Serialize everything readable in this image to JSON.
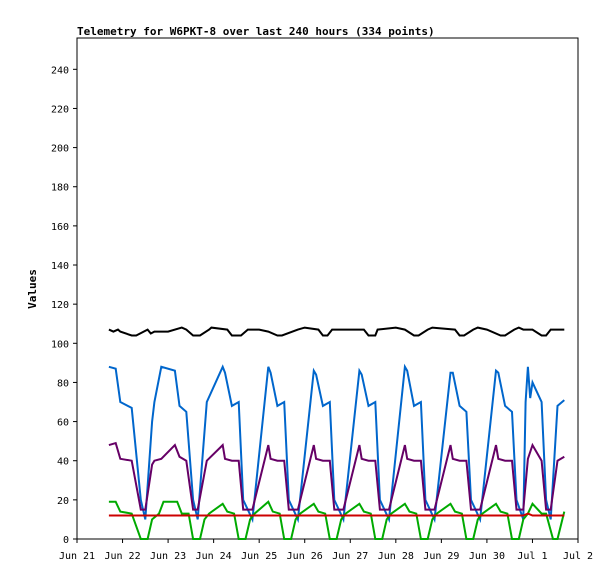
{
  "chart_data": {
    "type": "line",
    "title": "Telemetry for W6PKT-8 over last 240 hours (334 points)",
    "xlabel": "",
    "ylabel": "Values",
    "ylim": [
      0,
      256
    ],
    "xlim": [
      0,
      11
    ],
    "y_ticks": [
      0,
      20,
      40,
      60,
      80,
      100,
      120,
      140,
      160,
      180,
      200,
      220,
      240
    ],
    "x_ticks": [
      "Jun 21",
      "Jun 22",
      "Jun 23",
      "Jun 24",
      "Jun 25",
      "Jun 26",
      "Jun 27",
      "Jun 28",
      "Jun 29",
      "Jun 30",
      "Jul 1",
      "Jul 2"
    ],
    "grid": false,
    "legend": "none",
    "series": [
      {
        "color": "#000000",
        "x": [
          0.7,
          0.8,
          0.9,
          0.95,
          1.2,
          1.3,
          1.55,
          1.62,
          1.7,
          2.0,
          2.3,
          2.4,
          2.55,
          2.7,
          2.9,
          2.95,
          3.3,
          3.4,
          3.6,
          3.75,
          4.0,
          4.2,
          4.4,
          4.5,
          4.85,
          5.0,
          5.3,
          5.4,
          5.5,
          5.6,
          6.0,
          6.3,
          6.4,
          6.55,
          6.6,
          7.0,
          7.2,
          7.4,
          7.5,
          7.7,
          7.8,
          8.3,
          8.4,
          8.5,
          8.7,
          8.8,
          9.0,
          9.3,
          9.4,
          9.6,
          9.7,
          9.8,
          10.0,
          10.2,
          10.3,
          10.4,
          10.6,
          10.7
        ],
        "y": [
          107,
          106,
          107,
          106,
          104,
          104,
          107,
          105,
          106,
          106,
          108,
          107,
          104,
          104,
          107,
          108,
          107,
          104,
          104,
          107,
          107,
          106,
          104,
          104,
          107,
          108,
          107,
          104,
          104,
          107,
          107,
          107,
          104,
          104,
          107,
          108,
          107,
          104,
          104,
          107,
          108,
          107,
          104,
          104,
          107,
          108,
          107,
          104,
          104,
          107,
          108,
          107,
          107,
          104,
          104,
          107,
          107,
          107
        ]
      },
      {
        "color": "#0066cc",
        "x": [
          0.7,
          0.85,
          0.95,
          1.2,
          1.4,
          1.5,
          1.65,
          1.7,
          1.85,
          2.15,
          2.25,
          2.4,
          2.55,
          2.65,
          2.85,
          3.2,
          3.25,
          3.4,
          3.55,
          3.65,
          3.85,
          4.2,
          4.25,
          4.4,
          4.55,
          4.65,
          4.85,
          5.2,
          5.25,
          5.4,
          5.55,
          5.65,
          5.85,
          6.2,
          6.25,
          6.4,
          6.55,
          6.65,
          6.85,
          7.2,
          7.25,
          7.4,
          7.55,
          7.65,
          7.85,
          8.2,
          8.25,
          8.4,
          8.55,
          8.65,
          8.85,
          9.2,
          9.25,
          9.4,
          9.55,
          9.65,
          9.8,
          9.85,
          9.9,
          9.95,
          10.0,
          10.2,
          10.3,
          10.4,
          10.55,
          10.7
        ],
        "y": [
          88,
          87,
          70,
          67,
          20,
          10,
          60,
          70,
          88,
          86,
          68,
          65,
          20,
          10,
          70,
          88,
          85,
          68,
          70,
          20,
          10,
          88,
          85,
          68,
          70,
          20,
          10,
          86,
          84,
          68,
          70,
          20,
          10,
          86,
          84,
          68,
          70,
          20,
          10,
          88,
          86,
          68,
          70,
          20,
          10,
          85,
          85,
          68,
          65,
          20,
          10,
          86,
          85,
          68,
          65,
          20,
          10,
          70,
          88,
          72,
          80,
          70,
          20,
          10,
          68,
          71
        ]
      },
      {
        "color": "#660066",
        "x": [
          0.7,
          0.85,
          0.95,
          1.2,
          1.4,
          1.5,
          1.65,
          1.7,
          1.85,
          2.15,
          2.25,
          2.4,
          2.55,
          2.65,
          2.85,
          3.2,
          3.25,
          3.4,
          3.55,
          3.65,
          3.85,
          4.2,
          4.25,
          4.4,
          4.55,
          4.65,
          4.85,
          5.2,
          5.25,
          5.4,
          5.55,
          5.65,
          5.85,
          6.2,
          6.25,
          6.4,
          6.55,
          6.65,
          6.85,
          7.2,
          7.25,
          7.4,
          7.55,
          7.65,
          7.85,
          8.2,
          8.25,
          8.4,
          8.55,
          8.65,
          8.85,
          9.2,
          9.25,
          9.4,
          9.55,
          9.65,
          9.8,
          9.9,
          10.0,
          10.2,
          10.3,
          10.4,
          10.55,
          10.7
        ],
        "y": [
          48,
          49,
          41,
          40,
          15,
          15,
          38,
          40,
          41,
          48,
          42,
          40,
          15,
          15,
          40,
          48,
          41,
          40,
          40,
          15,
          15,
          48,
          41,
          40,
          40,
          15,
          15,
          48,
          41,
          40,
          40,
          15,
          15,
          48,
          41,
          40,
          40,
          15,
          15,
          48,
          41,
          40,
          40,
          15,
          15,
          48,
          41,
          40,
          40,
          15,
          15,
          48,
          41,
          40,
          40,
          15,
          15,
          41,
          48,
          40,
          15,
          15,
          40,
          42
        ]
      },
      {
        "color": "#00aa00",
        "x": [
          0.7,
          0.85,
          0.95,
          1.2,
          1.4,
          1.55,
          1.65,
          1.8,
          1.9,
          2.2,
          2.3,
          2.45,
          2.55,
          2.7,
          2.8,
          2.9,
          3.2,
          3.3,
          3.45,
          3.55,
          3.7,
          3.8,
          3.9,
          4.2,
          4.3,
          4.45,
          4.55,
          4.7,
          4.8,
          4.9,
          5.2,
          5.3,
          5.45,
          5.55,
          5.7,
          5.8,
          5.9,
          6.2,
          6.3,
          6.45,
          6.55,
          6.7,
          6.8,
          6.9,
          7.2,
          7.3,
          7.45,
          7.55,
          7.7,
          7.8,
          7.9,
          8.2,
          8.3,
          8.45,
          8.55,
          8.7,
          8.8,
          8.9,
          9.2,
          9.3,
          9.45,
          9.55,
          9.7,
          9.8,
          9.9,
          10.0,
          10.2,
          10.3,
          10.45,
          10.55,
          10.7
        ],
        "y": [
          19,
          19,
          14,
          13,
          0,
          0,
          10,
          13,
          19,
          19,
          13,
          13,
          0,
          0,
          10,
          13,
          18,
          14,
          13,
          0,
          0,
          10,
          13,
          19,
          14,
          13,
          0,
          0,
          10,
          13,
          18,
          14,
          13,
          0,
          0,
          10,
          13,
          18,
          14,
          13,
          0,
          0,
          10,
          13,
          18,
          14,
          13,
          0,
          0,
          10,
          13,
          18,
          14,
          13,
          0,
          0,
          10,
          13,
          18,
          14,
          13,
          0,
          0,
          10,
          13,
          18,
          13,
          13,
          0,
          0,
          14
        ]
      },
      {
        "color": "#cc0000",
        "x": [
          0.7,
          1.0,
          1.5,
          2.0,
          3.0,
          4.0,
          5.0,
          6.0,
          7.0,
          8.0,
          9.0,
          9.8,
          9.9,
          10.0,
          10.5,
          10.7
        ],
        "y": [
          12,
          12,
          12,
          12,
          12,
          12,
          12,
          12,
          12,
          12,
          12,
          12,
          13,
          12,
          12,
          12
        ]
      }
    ]
  }
}
